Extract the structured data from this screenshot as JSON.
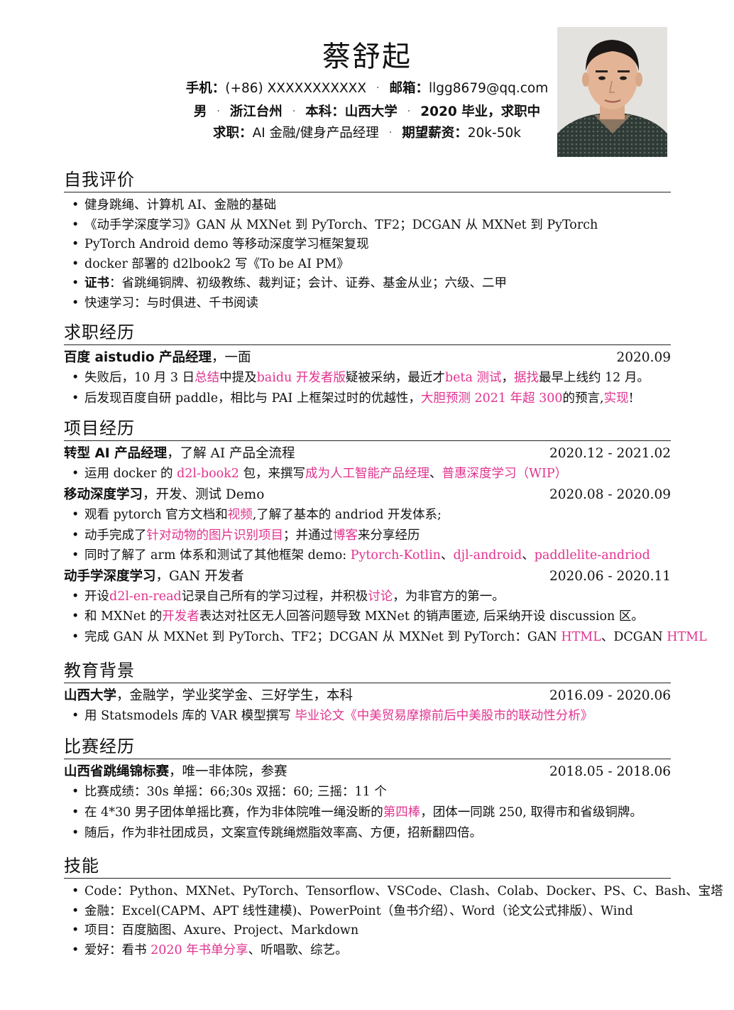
{
  "header": {
    "name": "蔡舒起",
    "line1": {
      "phone_label": "手机：",
      "phone": "(+86) XXXXXXXXXXX",
      "email_label": "邮箱：",
      "email": "llgg8679@qq.com"
    },
    "line2": {
      "gender": "男",
      "location": "浙江台州",
      "degree_label": "本科：",
      "school": "山西大学",
      "status": "2020 毕业，求职中"
    },
    "line3": {
      "job_label": "求职：",
      "job": "AI 金融/健身产品经理",
      "salary_label": "期望薪资：",
      "salary": "20k-50k"
    },
    "separator": "·"
  },
  "self_eval": {
    "title": "自我评价",
    "items": [
      "健身跳绳、计算机 AI、金融的基础",
      "《动手学深度学习》GAN 从 MXNet 到 PyTorch、TF2；DCGAN 从 MXNet 到 PyTorch",
      "PyTorch Android demo 等移动深度学习框架复现",
      "docker 部署的 d2lbook2 写《To be AI PM》",
      {
        "label": "证书",
        "text": "：省跳绳铜牌、初级教练、裁判证；会计、证券、基金从业；六级、二甲"
      },
      "快速学习：与时俱进、千书阅读"
    ]
  },
  "work": {
    "title": "求职经历",
    "entries": [
      {
        "org": "百度 aistudio 产品经理",
        "role": "，一面",
        "date": "2020.09",
        "bullets": [
          [
            {
              "t": "失败后，10 月 3 日"
            },
            {
              "t": "总结",
              "link": true
            },
            {
              "t": "中提及"
            },
            {
              "t": "baidu 开发者版",
              "link": true
            },
            {
              "t": "疑被采纳，最近才"
            },
            {
              "t": "beta 测试",
              "link": true
            },
            {
              "t": "，"
            },
            {
              "t": "据找",
              "link": true
            },
            {
              "t": "最早上线约 12 月。"
            }
          ],
          [
            {
              "t": "后发现百度自研 paddle，相比与 PAI 上框架过时的优越性，"
            },
            {
              "t": "大胆预测 2021 年超 300",
              "link": true
            },
            {
              "t": "的预言,"
            },
            {
              "t": "实现",
              "link": true
            },
            {
              "t": "!"
            }
          ]
        ]
      }
    ]
  },
  "projects": {
    "title": "项目经历",
    "entries": [
      {
        "org": "转型 AI 产品经理",
        "role": "，了解 AI 产品全流程",
        "date": "2020.12 - 2021.02",
        "bullets": [
          [
            {
              "t": "运用 docker 的 "
            },
            {
              "t": "d2l-book2",
              "link": true
            },
            {
              "t": " 包，来撰写"
            },
            {
              "t": "成为人工智能产品经理",
              "link": true
            },
            {
              "t": "、"
            },
            {
              "t": "普惠深度学习（WIP）",
              "link": true
            }
          ]
        ]
      },
      {
        "org": "移动深度学习",
        "role": "，开发、测试 Demo",
        "date": "2020.08 - 2020.09",
        "bullets": [
          [
            {
              "t": "观看 pytorch 官方文档和"
            },
            {
              "t": "视频",
              "link": true
            },
            {
              "t": ",了解了基本的 andriod 开发体系;"
            }
          ],
          [
            {
              "t": "动手完成了"
            },
            {
              "t": "针对动物的图片识别项目",
              "link": true
            },
            {
              "t": "；并通过"
            },
            {
              "t": "博客",
              "link": true
            },
            {
              "t": "来分享经历"
            }
          ],
          [
            {
              "t": "同时了解了 arm 体系和测试了其他框架 demo: "
            },
            {
              "t": "Pytorch-Kotlin",
              "link": true
            },
            {
              "t": "、"
            },
            {
              "t": "djl-android",
              "link": true
            },
            {
              "t": "、"
            },
            {
              "t": "paddlelite-andriod",
              "link": true
            }
          ]
        ]
      },
      {
        "org": "动手学深度学习",
        "role": "，GAN 开发者",
        "date": "2020.06 - 2020.11",
        "bullets": [
          [
            {
              "t": "开设"
            },
            {
              "t": "d2l-en-read",
              "link": true
            },
            {
              "t": "记录自己所有的学习过程，并积极"
            },
            {
              "t": "讨论",
              "link": true
            },
            {
              "t": "，为非官方的第一。"
            }
          ],
          [
            {
              "t": "和 MXNet 的"
            },
            {
              "t": "开发者",
              "link": true
            },
            {
              "t": "表达对社区无人回答问题导致 MXNet 的销声匿迹, 后采纳开设 discussion 区。"
            }
          ],
          [
            {
              "t": "完成 GAN 从 MXNet 到 PyTorch、TF2；DCGAN 从 MXNet 到 PyTorch：GAN "
            },
            {
              "t": "HTML",
              "link": true
            },
            {
              "t": "、DCGAN "
            },
            {
              "t": "HTML",
              "link": true
            }
          ]
        ]
      }
    ]
  },
  "education": {
    "title": "教育背景",
    "entries": [
      {
        "org": "山西大学",
        "role": "，金融学，学业奖学金、三好学生，本科",
        "date": "2016.09 - 2020.06",
        "bullets": [
          [
            {
              "t": "用 Statsmodels 库的 VAR 模型撰写 "
            },
            {
              "t": "毕业论文《中美贸易摩擦前后中美股市的联动性分析》",
              "link": true
            }
          ]
        ]
      }
    ]
  },
  "competition": {
    "title": "比赛经历",
    "entries": [
      {
        "org": "山西省跳绳锦标赛",
        "role": "，唯一非体院，参赛",
        "date": "2018.05 - 2018.06",
        "bullets": [
          [
            {
              "t": "比赛成绩：30s 单摇：66;30s 双摇：60; 三摇：11 个"
            }
          ],
          [
            {
              "t": "在 4*30 男子团体单摇比赛，作为非体院唯一绳没断的"
            },
            {
              "t": "第四棒",
              "link": true
            },
            {
              "t": "，团体一同跳 250, 取得市和省级铜牌。"
            }
          ],
          [
            {
              "t": "随后，作为非社团成员，文案宣传跳绳燃脂效率高、方便，招新翻四倍。"
            }
          ]
        ]
      }
    ]
  },
  "skills": {
    "title": "技能",
    "items": [
      [
        {
          "t": "Code：Python、MXNet、PyTorch、Tensorflow、VSCode、Clash、Colab、Docker、PS、C、Bash、宝塔"
        }
      ],
      [
        {
          "t": "金融：Excel(CAPM、APT 线性建模)、PowerPoint（鱼书介绍）、Word（论文公式排版）、Wind"
        }
      ],
      [
        {
          "t": "项目：百度脑图、Axure、Project、Markdown"
        }
      ],
      [
        {
          "t": "爱好：看书 "
        },
        {
          "t": "2020 年书单分享",
          "link": true
        },
        {
          "t": "、听唱歌、综艺。"
        }
      ]
    ]
  },
  "colors": {
    "link": "#e0338f",
    "text": "#111111"
  }
}
